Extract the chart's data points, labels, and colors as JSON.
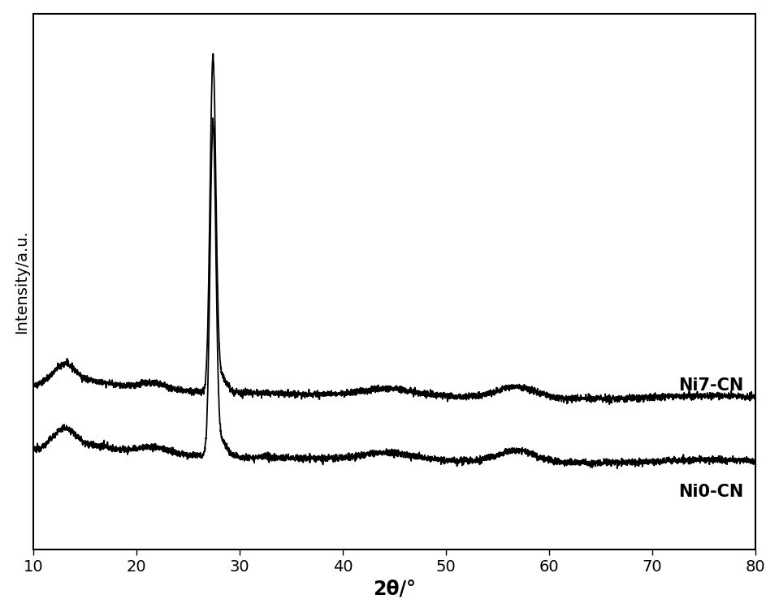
{
  "xlabel": "2θ/°",
  "ylabel": "Intensity/a.u.",
  "xlim": [
    10,
    80
  ],
  "x_ticks": [
    10,
    20,
    30,
    40,
    50,
    60,
    70,
    80
  ],
  "line_color": "#000000",
  "line_width": 1.3,
  "label_ni7": "Ni7-CN",
  "label_ni0": "Ni0-CN",
  "background_color": "#ffffff",
  "xlabel_fontsize": 17,
  "ylabel_fontsize": 14,
  "tick_fontsize": 14,
  "annotation_fontsize": 15,
  "ylim": [
    -0.02,
    1.05
  ]
}
